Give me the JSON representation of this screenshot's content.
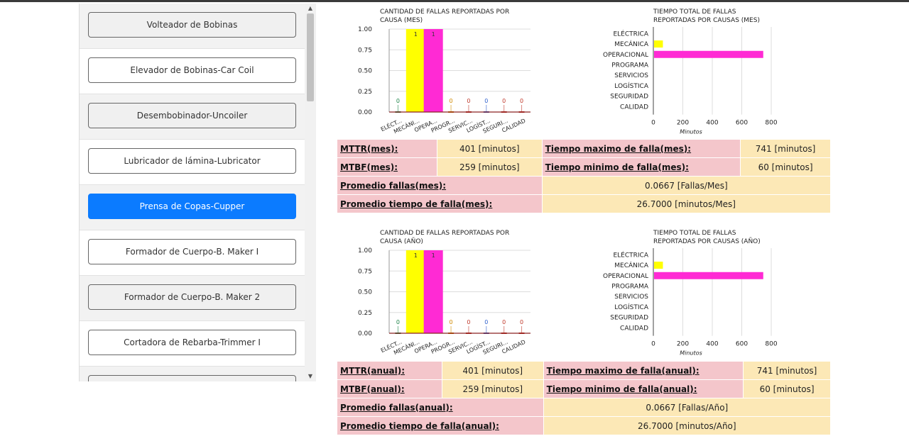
{
  "machines": [
    {
      "label": "Volteador de Bobinas",
      "active": false
    },
    {
      "label": "Elevador de Bobinas-Car Coil",
      "active": false
    },
    {
      "label": "Desembobinador-Uncoiler",
      "active": false
    },
    {
      "label": "Lubricador de lámina-Lubricator",
      "active": false
    },
    {
      "label": "Prensa de Copas-Cupper",
      "active": true
    },
    {
      "label": "Formador de Cuerpo-B. Maker I",
      "active": false
    },
    {
      "label": "Formador de Cuerpo-B. Maker 2",
      "active": false
    },
    {
      "label": "Cortadora de Rebarba-Trimmer I",
      "active": false
    },
    {
      "label": "",
      "active": false
    }
  ],
  "colors": {
    "yellow": "#ffff00",
    "magenta": "#ff2ad4",
    "red": "#c0392b",
    "green": "#1e8449",
    "blue": "#2e5fcc",
    "orange": "#d08a00",
    "active_button": "#0b7bff",
    "label_bg": "#f4c6cb",
    "value_bg": "#fce8b6"
  },
  "monthly": {
    "count_chart": {
      "title_lines": [
        "CANTIDAD DE FALLAS REPORTADAS POR",
        "CAUSA (MES)"
      ]
    },
    "time_chart": {
      "title_lines": [
        "TIEMPO TOTAL DE FALLAS",
        "REPORTADAS POR CAUSAS (MES)"
      ],
      "xlabel": "Minutos"
    },
    "stats": {
      "mttr_label": "MTTR(mes):",
      "mttr_value": "401 [minutos]",
      "tmax_label": "Tiempo maximo de falla(mes):",
      "tmax_value": "741 [minutos]",
      "mtbf_label": "MTBF(mes):",
      "mtbf_value": "259 [minutos]",
      "tmin_label": "Tiempo minimo de falla(mes):",
      "tmin_value": "60 [minutos]",
      "prom_fallas_label": "Promedio fallas(mes):",
      "prom_fallas_value": "0.0667 [Fallas/Mes]",
      "prom_tiempo_label": "Promedio tiempo de falla(mes):",
      "prom_tiempo_value": "26.7000 [minutos/Mes]"
    }
  },
  "annual": {
    "count_chart": {
      "title_lines": [
        "CANTIDAD DE FALLAS REPORTADAS POR",
        "CAUSA (AÑO)"
      ]
    },
    "time_chart": {
      "title_lines": [
        "TIEMPO TOTAL DE FALLAS",
        "REPORTADAS POR CAUSAS (AÑO)"
      ],
      "xlabel": "Minutos"
    },
    "stats": {
      "mttr_label": "MTTR(anual):",
      "mttr_value": "401 [minutos]",
      "tmax_label": "Tiempo maximo de falla(anual):",
      "tmax_value": "741 [minutos]",
      "mtbf_label": "MTBF(anual):",
      "mtbf_value": "259 [minutos]",
      "tmin_label": "Tiempo minimo de falla(anual):",
      "tmin_value": "60 [minutos]",
      "prom_fallas_label": "Promedio fallas(anual):",
      "prom_fallas_value": "0.0667 [Fallas/Año]",
      "prom_tiempo_label": "Promedio tiempo de falla(anual):",
      "prom_tiempo_value": "26.7000 [minutos/Año]"
    }
  },
  "chart_data": [
    {
      "type": "bar",
      "title": "CANTIDAD DE FALLAS REPORTADAS POR CAUSA (MES)",
      "categories": [
        "ELÉCT...",
        "MECÁNI...",
        "OPERA...",
        "PROGR...",
        "SERVIC...",
        "LOGÍST...",
        "SEGURI...",
        "CALIDAD"
      ],
      "values": [
        0,
        1,
        1,
        0,
        0,
        0,
        0,
        0
      ],
      "data_labels": [
        "0",
        "1",
        "1",
        "0",
        "0",
        "0",
        "0",
        "0"
      ],
      "bar_colors": [
        "#1e8449",
        "#ffff00",
        "#ff2ad4",
        "#d08a00",
        "#c0392b",
        "#2e5fcc",
        "#c0392b",
        "#c0392b"
      ],
      "yticks": [
        "0.00",
        "0.25",
        "0.50",
        "0.75",
        "1.00"
      ],
      "ylim": [
        0,
        1
      ]
    },
    {
      "type": "bar",
      "orientation": "horizontal",
      "title": "TIEMPO TOTAL DE FALLAS REPORTADAS POR CAUSAS (MES)",
      "categories": [
        "ELÉCTRICA",
        "MECÁNICA",
        "OPERACIONAL",
        "PROGRAMA",
        "SERVICIOS",
        "LOGÍSTICA",
        "SEGURIDAD",
        "CALIDAD"
      ],
      "values": [
        0,
        60,
        741,
        0,
        0,
        0,
        0,
        0
      ],
      "bar_colors": [
        "#c0392b",
        "#ffff00",
        "#ff2ad4",
        "#c0392b",
        "#c0392b",
        "#c0392b",
        "#c0392b",
        "#c0392b"
      ],
      "xticks": [
        "0",
        "200",
        "400",
        "600",
        "800"
      ],
      "xlim": [
        0,
        800
      ],
      "xlabel": "Minutos"
    },
    {
      "type": "bar",
      "title": "CANTIDAD DE FALLAS REPORTADAS POR CAUSA (AÑO)",
      "categories": [
        "ELÉCT...",
        "MECÁNI...",
        "OPERA...",
        "PROGR...",
        "SERVIC...",
        "LOGÍST...",
        "SEGURI...",
        "CALIDAD"
      ],
      "values": [
        0,
        1,
        1,
        0,
        0,
        0,
        0,
        0
      ],
      "data_labels": [
        "0",
        "1",
        "1",
        "0",
        "0",
        "0",
        "0",
        "0"
      ],
      "bar_colors": [
        "#1e8449",
        "#ffff00",
        "#ff2ad4",
        "#d08a00",
        "#c0392b",
        "#2e5fcc",
        "#c0392b",
        "#c0392b"
      ],
      "yticks": [
        "0.00",
        "0.25",
        "0.50",
        "0.75",
        "1.00"
      ],
      "ylim": [
        0,
        1
      ]
    },
    {
      "type": "bar",
      "orientation": "horizontal",
      "title": "TIEMPO TOTAL DE FALLAS REPORTADAS POR CAUSAS (AÑO)",
      "categories": [
        "ELÉCTRICA",
        "MECÁNICA",
        "OPERACIONAL",
        "PROGRAMA",
        "SERVICIOS",
        "LOGÍSTICA",
        "SEGURIDAD",
        "CALIDAD"
      ],
      "values": [
        0,
        60,
        741,
        0,
        0,
        0,
        0,
        0
      ],
      "bar_colors": [
        "#c0392b",
        "#ffff00",
        "#ff2ad4",
        "#c0392b",
        "#c0392b",
        "#c0392b",
        "#c0392b",
        "#c0392b"
      ],
      "xticks": [
        "0",
        "200",
        "400",
        "600",
        "800"
      ],
      "xlim": [
        0,
        800
      ],
      "xlabel": "Minutos"
    }
  ]
}
